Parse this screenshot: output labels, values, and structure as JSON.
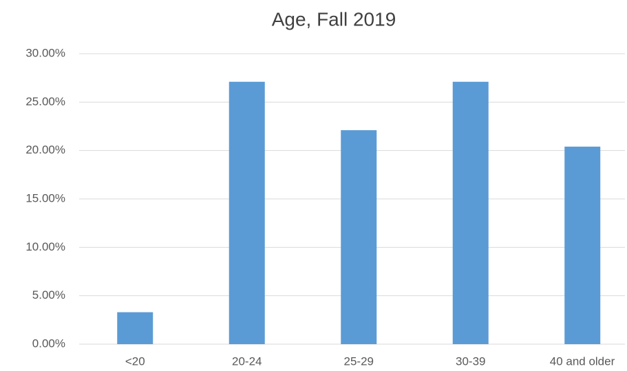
{
  "chart_data": {
    "type": "bar",
    "title": "Age, Fall 2019",
    "categories": [
      "<20",
      "20-24",
      "25-29",
      "30-39",
      "40 and older"
    ],
    "values": [
      3.3,
      27.1,
      22.1,
      27.1,
      20.4
    ],
    "color": "#5b9bd5",
    "ylim": [
      0,
      30
    ],
    "yticks": [
      {
        "value": 0,
        "label": "0.00%"
      },
      {
        "value": 5,
        "label": "5.00%"
      },
      {
        "value": 10,
        "label": "10.00%"
      },
      {
        "value": 15,
        "label": "15.00%"
      },
      {
        "value": 20,
        "label": "20.00%"
      },
      {
        "value": 25,
        "label": "25.00%"
      },
      {
        "value": 30,
        "label": "30.00%"
      }
    ],
    "grid": true
  }
}
